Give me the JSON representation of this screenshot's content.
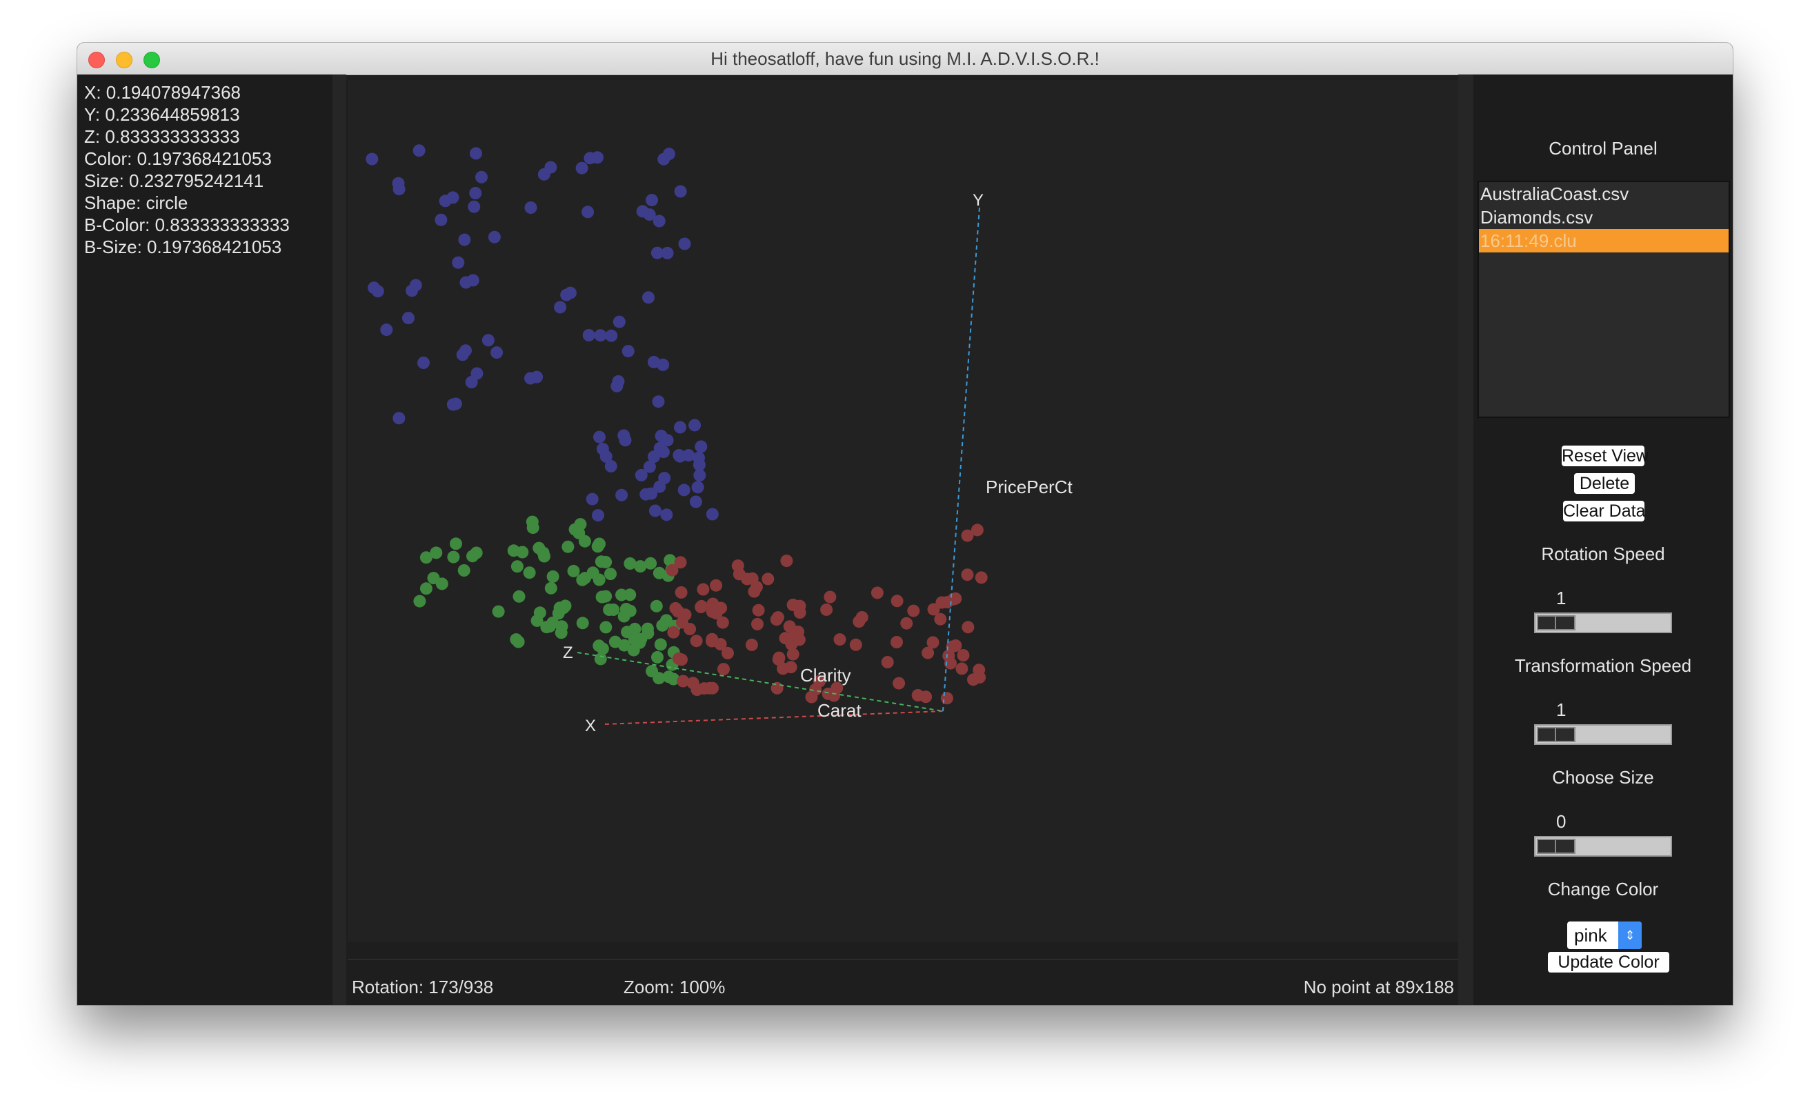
{
  "window": {
    "title": "Hi theosatloff, have fun using M.I. A.D.V.I.S.O.R.!"
  },
  "info": {
    "lines": [
      "X: 0.194078947368",
      "Y: 0.233644859813",
      "Z: 0.833333333333",
      "Color: 0.197368421053",
      "Size: 0.232795242141",
      "Shape: circle",
      "B-Color: 0.833333333333",
      "B-Size: 0.197368421053"
    ]
  },
  "plot": {
    "axes": {
      "x_letter": "X",
      "y_letter": "Y",
      "z_letter": "Z",
      "x_name": "Carat",
      "y_name": "PricePerCt",
      "z_name": "Clarity",
      "x_color": "#d04a4a",
      "y_color": "#3b9bd8",
      "z_color": "#47b35a"
    },
    "colors": {
      "blue": "#3e3d8c",
      "green": "#3f8a3f",
      "red": "#8a3a3a"
    }
  },
  "status": {
    "rotation": "Rotation: 173/938",
    "zoom": "Zoom: 100%",
    "point": "No point at 89x188"
  },
  "control": {
    "title": "Control Panel",
    "files": [
      "AustraliaCoast.csv",
      "Diamonds.csv",
      "16:11:49.clu"
    ],
    "selected_file_index": 2,
    "buttons": {
      "reset": "Reset View",
      "delete": "Delete",
      "clear": "Clear Data"
    },
    "rotation_speed": {
      "label": "Rotation Speed",
      "value": "1"
    },
    "transformation_speed": {
      "label": "Transformation Speed",
      "value": "1"
    },
    "choose_size": {
      "label": "Choose Size",
      "value": "0"
    },
    "change_color": {
      "label": "Change Color",
      "selected": "pink",
      "update_label": "Update Color"
    }
  }
}
